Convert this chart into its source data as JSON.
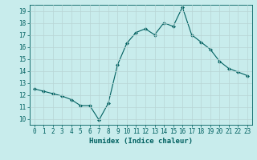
{
  "x": [
    0,
    1,
    2,
    3,
    4,
    5,
    6,
    7,
    8,
    9,
    10,
    11,
    12,
    13,
    14,
    15,
    16,
    17,
    18,
    19,
    20,
    21,
    22,
    23
  ],
  "y": [
    12.5,
    12.3,
    12.1,
    11.9,
    11.6,
    11.1,
    11.1,
    9.9,
    11.3,
    14.5,
    16.3,
    17.2,
    17.5,
    17.0,
    18.0,
    17.7,
    19.3,
    17.0,
    16.4,
    15.8,
    14.8,
    14.2,
    13.9,
    13.6
  ],
  "line_color": "#006060",
  "bg_color": "#c8ecec",
  "xlabel": "Humidex (Indice chaleur)",
  "ylim": [
    9.5,
    19.5
  ],
  "xlim": [
    -0.5,
    23.5
  ],
  "yticks": [
    10,
    11,
    12,
    13,
    14,
    15,
    16,
    17,
    18,
    19
  ],
  "xticks": [
    0,
    1,
    2,
    3,
    4,
    5,
    6,
    7,
    8,
    9,
    10,
    11,
    12,
    13,
    14,
    15,
    16,
    17,
    18,
    19,
    20,
    21,
    22,
    23
  ],
  "font_color": "#006060",
  "grid_color": "#b8d4d4",
  "tick_fontsize": 5.5,
  "xlabel_fontsize": 6.5
}
